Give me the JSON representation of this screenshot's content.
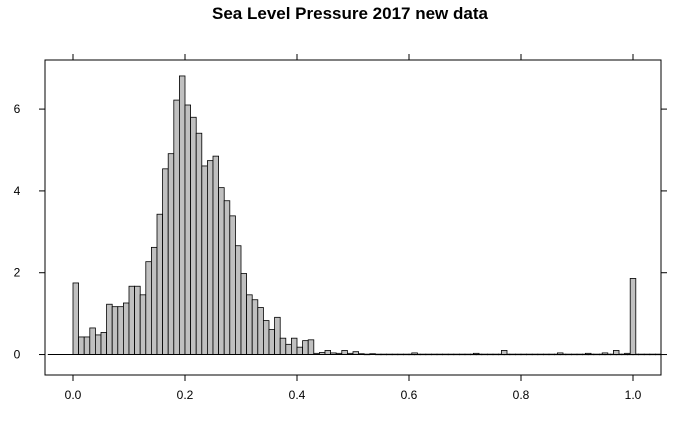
{
  "chart_data": {
    "type": "bar",
    "subtype": "histogram",
    "title": "Sea Level Pressure 2017 new data",
    "xlabel": "",
    "ylabel": "",
    "xlim": [
      -0.05,
      1.05
    ],
    "ylim": [
      -0.5,
      7.2
    ],
    "bin_width": 0.01,
    "x_ticks": [
      "0.0",
      "0.2",
      "0.4",
      "0.6",
      "0.8",
      "1.0"
    ],
    "y_ticks": [
      "0",
      "2",
      "4",
      "6"
    ],
    "grid": false,
    "legend": "none",
    "colors": {
      "bar_fill": "#c0c0c0",
      "bar_stroke": "#000000",
      "baseline": "#000000"
    },
    "bins": {
      "start": -0.05,
      "values": [
        0,
        0,
        0,
        0,
        0,
        1.75,
        0.43,
        0.43,
        0.65,
        0.48,
        0.54,
        1.23,
        1.17,
        1.17,
        1.26,
        1.67,
        1.67,
        1.46,
        2.27,
        2.62,
        3.43,
        4.54,
        4.91,
        6.22,
        6.81,
        6.1,
        5.8,
        5.41,
        4.61,
        4.74,
        4.85,
        4.08,
        3.76,
        3.39,
        2.66,
        1.98,
        1.46,
        1.34,
        1.15,
        0.83,
        0.61,
        0.91,
        0.4,
        0.25,
        0.4,
        0.18,
        0.34,
        0.36,
        0.03,
        0.05,
        0.1,
        0.04,
        0.03,
        0.1,
        0.03,
        0.07,
        0.02,
        0.01,
        0.02,
        0.01,
        0.01,
        0.01,
        0.01,
        0.01,
        0.01,
        0.01,
        0.01,
        0.01,
        0.01,
        0.01,
        0.01,
        0.01,
        0.01,
        0.01,
        0.01,
        0.01,
        0.01,
        0.01,
        0.01,
        0.01,
        0.01,
        0.01,
        0.01,
        0.01,
        0.01,
        0.01,
        0.01,
        0.01,
        0.01,
        0.01,
        0.01,
        0.01,
        0.01,
        0.01,
        0.01,
        0.01,
        0.01,
        0.01,
        0.01,
        0.01,
        0.01,
        0.01,
        0.01,
        0.01,
        0.01,
        0.01,
        0.01,
        0.01,
        0.01,
        0.01
      ]
    },
    "sparse_bins": [
      {
        "x": 0.61,
        "value": 0.04
      },
      {
        "x": 0.72,
        "value": 0.03
      },
      {
        "x": 0.77,
        "value": 0.1
      },
      {
        "x": 0.87,
        "value": 0.04
      },
      {
        "x": 0.92,
        "value": 0.03
      },
      {
        "x": 0.95,
        "value": 0.04
      },
      {
        "x": 0.97,
        "value": 0.1
      },
      {
        "x": 0.99,
        "value": 0.03
      },
      {
        "x": 1.0,
        "value": 1.86
      }
    ]
  }
}
